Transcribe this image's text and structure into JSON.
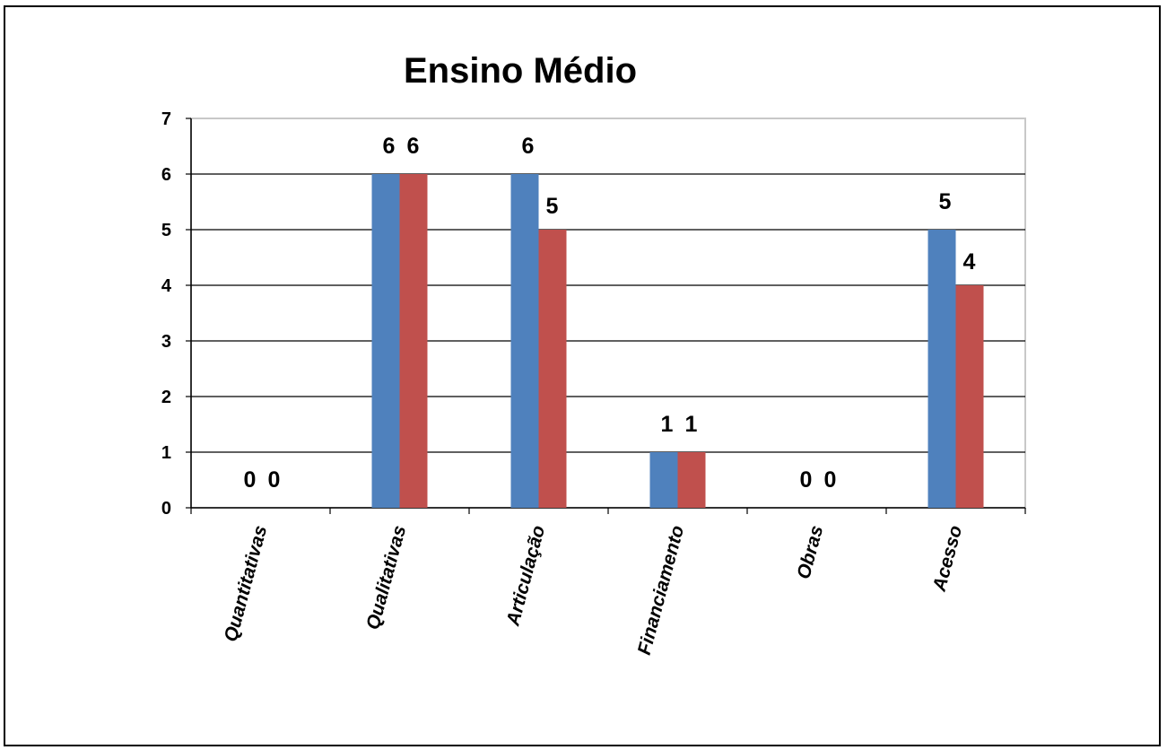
{
  "chart_data": {
    "type": "bar",
    "title": "Ensino Médio",
    "xlabel": "",
    "ylabel": "",
    "categories": [
      "Quantitativas",
      "Qualitativas",
      "Articulação",
      "Financiamento",
      "Obras",
      "Acesso"
    ],
    "series": [
      {
        "color": "#4f81bd",
        "values": [
          0,
          6,
          6,
          1,
          0,
          5
        ]
      },
      {
        "color": "#c0504d",
        "values": [
          0,
          6,
          5,
          1,
          0,
          4
        ]
      }
    ],
    "ylim": [
      0,
      7
    ],
    "yticks": [
      "0",
      "1",
      "2",
      "3",
      "4",
      "5",
      "6",
      "7"
    ],
    "grid": true,
    "legend": "none",
    "data_labels": true
  }
}
